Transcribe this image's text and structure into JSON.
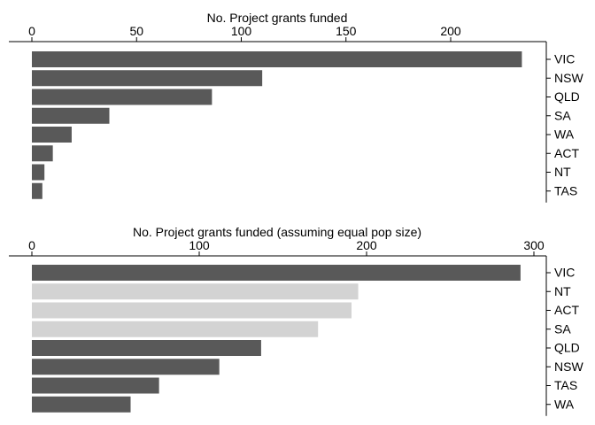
{
  "colors": {
    "dark": "#595959",
    "light": "#d3d3d3",
    "axis": "#000000"
  },
  "chart_data": [
    {
      "type": "bar",
      "orientation": "horizontal",
      "title": "No. Project grants funded",
      "xlabel": "",
      "ylabel": "",
      "categories": [
        "VIC",
        "NSW",
        "QLD",
        "SA",
        "WA",
        "ACT",
        "NT",
        "TAS"
      ],
      "values": [
        234,
        110,
        86,
        37,
        19,
        10,
        6,
        5
      ],
      "highlight": [
        false,
        false,
        false,
        false,
        false,
        false,
        false,
        false
      ],
      "xlim": [
        0,
        250
      ],
      "xticks": [
        0,
        50,
        100,
        150,
        200
      ],
      "axis_position": "top",
      "category_axis_position": "right",
      "grid": false
    },
    {
      "type": "bar",
      "orientation": "horizontal",
      "title": "No. Project grants funded (assuming equal pop size)",
      "xlabel": "",
      "ylabel": "",
      "categories": [
        "VIC",
        "NT",
        "ACT",
        "SA",
        "QLD",
        "NSW",
        "TAS",
        "WA"
      ],
      "values": [
        292,
        195,
        191,
        171,
        137,
        112,
        76,
        59
      ],
      "highlight": [
        false,
        true,
        true,
        true,
        false,
        false,
        false,
        false
      ],
      "xlim": [
        0,
        310
      ],
      "xticks": [
        0,
        100,
        200,
        300
      ],
      "axis_position": "top",
      "category_axis_position": "right",
      "grid": false
    }
  ]
}
